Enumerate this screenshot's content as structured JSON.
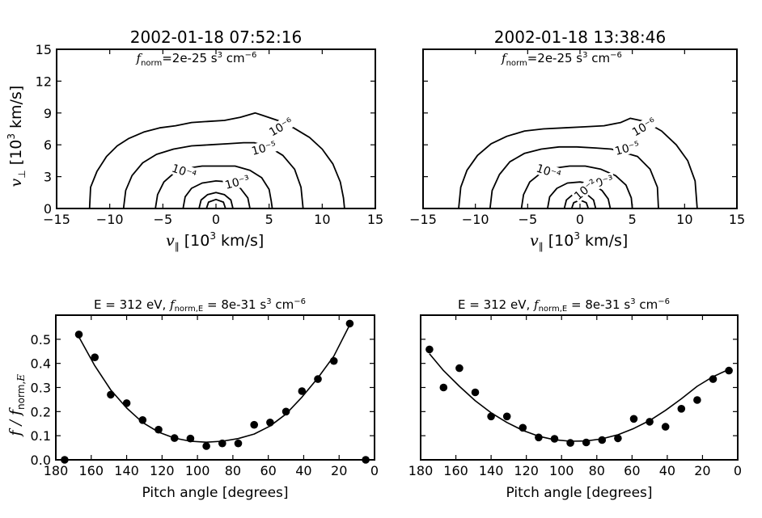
{
  "chart_data": [
    {
      "type": "contour",
      "title": "2002-01-18 07:52:16",
      "annotation": "f_norm=2e-25 s³ cm⁻⁶",
      "xlabel": "v∥ [10³ km/s]",
      "ylabel": "v⊥ [10³ km/s]",
      "xlim": [
        -15,
        15
      ],
      "ylim": [
        0,
        15
      ],
      "xticks": [
        "−15",
        "−10",
        "−5",
        "0",
        "5",
        "10",
        "15"
      ],
      "yticks": [
        "0",
        "3",
        "6",
        "9",
        "12",
        "15"
      ],
      "yticks_shown": true,
      "contours": [
        {
          "label": "10⁻⁶",
          "points": [
            [
              -11.9,
              0
            ],
            [
              -11.8,
              2
            ],
            [
              -11.2,
              3.5
            ],
            [
              -10.3,
              4.9
            ],
            [
              -9.3,
              5.9
            ],
            [
              -8.2,
              6.6
            ],
            [
              -6.8,
              7.2
            ],
            [
              -5.3,
              7.6
            ],
            [
              -3.8,
              7.8
            ],
            [
              -2.3,
              8.1
            ],
            [
              -0.8,
              8.2
            ],
            [
              0.8,
              8.3
            ],
            [
              2.3,
              8.6
            ],
            [
              3.7,
              9.0
            ],
            [
              4.3,
              8.8
            ],
            [
              5.8,
              8.3
            ],
            [
              7.3,
              7.6
            ],
            [
              8.8,
              6.7
            ],
            [
              10,
              5.6
            ],
            [
              11,
              4.2
            ],
            [
              11.7,
              2.5
            ],
            [
              12,
              1
            ],
            [
              12.1,
              0
            ]
          ]
        },
        {
          "label": "10⁻⁵",
          "points": [
            [
              -8.7,
              0
            ],
            [
              -8.5,
              1.7
            ],
            [
              -7.9,
              3.1
            ],
            [
              -6.9,
              4.3
            ],
            [
              -5.6,
              5.1
            ],
            [
              -4,
              5.6
            ],
            [
              -2.3,
              5.9
            ],
            [
              -0.6,
              6.0
            ],
            [
              1.1,
              6.1
            ],
            [
              2.6,
              6.2
            ],
            [
              3.6,
              6.2
            ],
            [
              5,
              5.8
            ],
            [
              6.3,
              5
            ],
            [
              7.4,
              3.7
            ],
            [
              8,
              2
            ],
            [
              8.2,
              0
            ]
          ]
        },
        {
          "label": "10⁻⁴",
          "points": [
            [
              -5.7,
              0
            ],
            [
              -5.5,
              1.3
            ],
            [
              -4.9,
              2.5
            ],
            [
              -4,
              3.3
            ],
            [
              -2.7,
              3.8
            ],
            [
              -1.3,
              4.0
            ],
            [
              0.2,
              4.0
            ],
            [
              1.8,
              4.0
            ],
            [
              3.2,
              3.6
            ],
            [
              4.3,
              2.9
            ],
            [
              5,
              1.8
            ],
            [
              5.2,
              0.7
            ],
            [
              5.3,
              0
            ]
          ]
        },
        {
          "label": "10⁻³",
          "points": [
            [
              -3.1,
              0
            ],
            [
              -2.9,
              1.1
            ],
            [
              -2.3,
              1.9
            ],
            [
              -1.3,
              2.4
            ],
            [
              0,
              2.6
            ],
            [
              1.3,
              2.5
            ],
            [
              2.3,
              1.9
            ],
            [
              3,
              1
            ],
            [
              3.2,
              0
            ]
          ]
        },
        {
          "label": "",
          "points": [
            [
              -1.6,
              0
            ],
            [
              -1.4,
              0.8
            ],
            [
              -0.8,
              1.3
            ],
            [
              0,
              1.5
            ],
            [
              0.8,
              1.3
            ],
            [
              1.4,
              0.8
            ],
            [
              1.6,
              0
            ]
          ]
        },
        {
          "label": "",
          "points": [
            [
              -0.9,
              0
            ],
            [
              -0.7,
              0.6
            ],
            [
              0,
              0.85
            ],
            [
              0.7,
              0.6
            ],
            [
              0.9,
              0
            ]
          ]
        }
      ]
    },
    {
      "type": "contour",
      "title": "2002-01-18 13:38:46",
      "annotation": "f_norm=2e-25 s³ cm⁻⁶",
      "xlabel": "v∥ [10³ km/s]",
      "xlim": [
        -15,
        15
      ],
      "ylim": [
        0,
        15
      ],
      "xticks": [
        "−15",
        "−10",
        "−5",
        "0",
        "5",
        "10",
        "15"
      ],
      "yticks_shown": false,
      "contours": [
        {
          "label": "10⁻⁶",
          "points": [
            [
              -11.6,
              0
            ],
            [
              -11.4,
              2
            ],
            [
              -10.8,
              3.6
            ],
            [
              -9.8,
              5
            ],
            [
              -8.5,
              6.1
            ],
            [
              -7,
              6.8
            ],
            [
              -5.3,
              7.3
            ],
            [
              -3.5,
              7.5
            ],
            [
              -1.5,
              7.6
            ],
            [
              0.5,
              7.7
            ],
            [
              2.3,
              7.8
            ],
            [
              3.9,
              8.1
            ],
            [
              4.8,
              8.5
            ],
            [
              6.2,
              8.2
            ],
            [
              7.8,
              7.3
            ],
            [
              9.2,
              6
            ],
            [
              10.3,
              4.5
            ],
            [
              11,
              2.6
            ],
            [
              11.2,
              0
            ]
          ]
        },
        {
          "label": "10⁻⁵",
          "points": [
            [
              -8.6,
              0
            ],
            [
              -8.4,
              1.7
            ],
            [
              -7.7,
              3.2
            ],
            [
              -6.7,
              4.4
            ],
            [
              -5.3,
              5.2
            ],
            [
              -3.7,
              5.6
            ],
            [
              -2,
              5.8
            ],
            [
              -0.3,
              5.8
            ],
            [
              1.5,
              5.7
            ],
            [
              3,
              5.6
            ],
            [
              4.1,
              5.3
            ],
            [
              5.5,
              4.9
            ],
            [
              6.7,
              3.7
            ],
            [
              7.4,
              2
            ],
            [
              7.5,
              0
            ]
          ]
        },
        {
          "label": "10⁻⁴",
          "points": [
            [
              -5.6,
              0
            ],
            [
              -5.4,
              1.3
            ],
            [
              -4.8,
              2.5
            ],
            [
              -3.8,
              3.3
            ],
            [
              -2.5,
              3.8
            ],
            [
              -1,
              4.0
            ],
            [
              0.5,
              4.0
            ],
            [
              2,
              3.7
            ],
            [
              3.4,
              3.1
            ],
            [
              4.4,
              2.2
            ],
            [
              4.9,
              1
            ],
            [
              5,
              0
            ]
          ]
        },
        {
          "label": "10⁻³",
          "points": [
            [
              -3.1,
              0
            ],
            [
              -2.9,
              1.1
            ],
            [
              -2.2,
              1.9
            ],
            [
              -1.2,
              2.4
            ],
            [
              0,
              2.5
            ],
            [
              1.2,
              2.3
            ],
            [
              2.1,
              1.7
            ],
            [
              2.7,
              0.9
            ],
            [
              2.9,
              0
            ]
          ]
        },
        {
          "label": "10⁻²",
          "points": [
            [
              -1.5,
              0
            ],
            [
              -1.3,
              0.8
            ],
            [
              -0.7,
              1.3
            ],
            [
              0,
              1.45
            ],
            [
              0.7,
              1.3
            ],
            [
              1.3,
              0.8
            ],
            [
              1.5,
              0
            ]
          ]
        },
        {
          "label": "",
          "points": [
            [
              -0.8,
              0
            ],
            [
              -0.6,
              0.55
            ],
            [
              0,
              0.8
            ],
            [
              0.6,
              0.55
            ],
            [
              0.8,
              0
            ]
          ]
        }
      ]
    },
    {
      "type": "scatter",
      "title": "E = 312 eV, f_norm,E = 8e-31 s³ cm⁻⁶",
      "xlabel": "Pitch angle [degrees]",
      "ylabel": "f / f_norm,E",
      "xlim": [
        180,
        0
      ],
      "ylim": [
        0,
        0.6
      ],
      "xticks": [
        "180",
        "160",
        "140",
        "120",
        "100",
        "80",
        "60",
        "40",
        "20",
        "0"
      ],
      "yticks": [
        "0.0",
        "0.1",
        "0.2",
        "0.3",
        "0.4",
        "0.5"
      ],
      "yticks_shown": true,
      "points": [
        [
          175,
          0
        ],
        [
          167,
          0.52
        ],
        [
          158,
          0.425
        ],
        [
          149,
          0.27
        ],
        [
          140,
          0.235
        ],
        [
          131,
          0.165
        ],
        [
          122,
          0.125
        ],
        [
          113,
          0.09
        ],
        [
          104,
          0.088
        ],
        [
          95,
          0.057
        ],
        [
          86,
          0.068
        ],
        [
          77,
          0.068
        ],
        [
          68,
          0.145
        ],
        [
          59,
          0.155
        ],
        [
          50,
          0.2
        ],
        [
          41,
          0.285
        ],
        [
          32,
          0.335
        ],
        [
          23,
          0.41
        ],
        [
          14,
          0.565
        ],
        [
          5,
          0
        ]
      ],
      "fit_curve": [
        [
          167,
          0.51
        ],
        [
          158,
          0.39
        ],
        [
          149,
          0.29
        ],
        [
          140,
          0.215
        ],
        [
          131,
          0.155
        ],
        [
          122,
          0.115
        ],
        [
          113,
          0.09
        ],
        [
          104,
          0.077
        ],
        [
          95,
          0.073
        ],
        [
          86,
          0.077
        ],
        [
          77,
          0.088
        ],
        [
          68,
          0.107
        ],
        [
          59,
          0.14
        ],
        [
          50,
          0.19
        ],
        [
          41,
          0.26
        ],
        [
          32,
          0.34
        ],
        [
          23,
          0.43
        ],
        [
          14,
          0.56
        ]
      ]
    },
    {
      "type": "scatter",
      "title": "E = 312 eV, f_norm,E = 8e-31 s³ cm⁻⁶",
      "xlabel": "Pitch angle [degrees]",
      "xlim": [
        180,
        0
      ],
      "ylim": [
        0,
        0.6
      ],
      "xticks": [
        "180",
        "160",
        "140",
        "120",
        "100",
        "80",
        "60",
        "40",
        "20",
        "0"
      ],
      "yticks_shown": false,
      "points": [
        [
          175,
          0.458
        ],
        [
          167,
          0.3
        ],
        [
          158,
          0.38
        ],
        [
          149,
          0.28
        ],
        [
          140,
          0.18
        ],
        [
          131,
          0.18
        ],
        [
          122,
          0.133
        ],
        [
          113,
          0.093
        ],
        [
          104,
          0.087
        ],
        [
          95,
          0.07
        ],
        [
          86,
          0.072
        ],
        [
          77,
          0.082
        ],
        [
          68,
          0.089
        ],
        [
          59,
          0.17
        ],
        [
          50,
          0.158
        ],
        [
          41,
          0.137
        ],
        [
          32,
          0.212
        ],
        [
          23,
          0.248
        ],
        [
          14,
          0.335
        ],
        [
          5,
          0.37
        ]
      ],
      "fit_curve": [
        [
          175,
          0.44
        ],
        [
          167,
          0.37
        ],
        [
          158,
          0.305
        ],
        [
          149,
          0.245
        ],
        [
          140,
          0.195
        ],
        [
          131,
          0.155
        ],
        [
          122,
          0.122
        ],
        [
          113,
          0.098
        ],
        [
          104,
          0.083
        ],
        [
          95,
          0.077
        ],
        [
          86,
          0.078
        ],
        [
          77,
          0.087
        ],
        [
          68,
          0.104
        ],
        [
          59,
          0.13
        ],
        [
          50,
          0.163
        ],
        [
          41,
          0.205
        ],
        [
          32,
          0.253
        ],
        [
          23,
          0.305
        ],
        [
          14,
          0.345
        ],
        [
          5,
          0.375
        ]
      ]
    }
  ]
}
